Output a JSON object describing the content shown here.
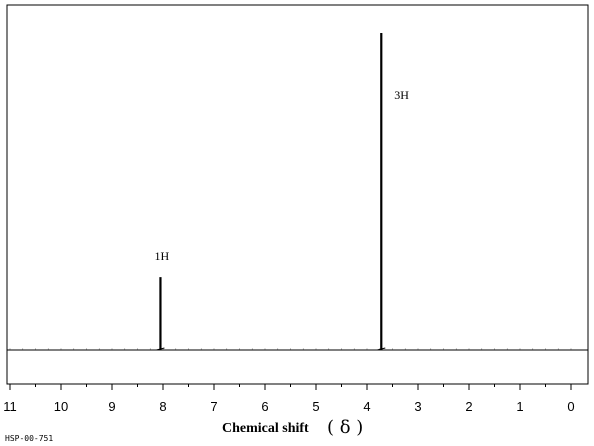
{
  "chart_data": {
    "type": "line",
    "title": "",
    "xlabel_text": "Chemical shift",
    "xlabel_symbol": "( δ )",
    "ylabel": "",
    "xlim": [
      11,
      0
    ],
    "x_reversed": true,
    "x_ticks": [
      "11",
      "10",
      "9",
      "8",
      "7",
      "6",
      "5",
      "4",
      "3",
      "2",
      "1",
      "0"
    ],
    "y_axis_shown": false,
    "grid": false,
    "series": [
      {
        "peaks": [
          {
            "shift": 8.05,
            "relative_height": 0.23,
            "label": "1H"
          },
          {
            "shift": 3.72,
            "relative_height": 1.0,
            "label": "3H"
          }
        ]
      }
    ]
  },
  "footer": {
    "code": "HSP-00-751"
  }
}
